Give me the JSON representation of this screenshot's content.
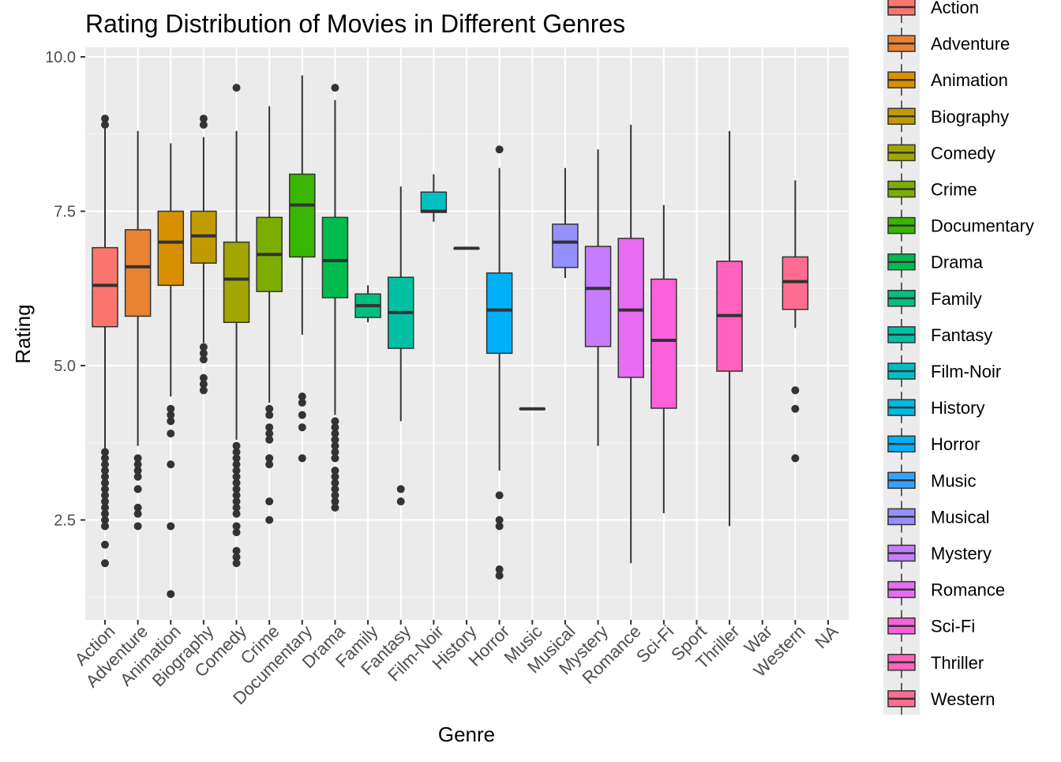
{
  "chart_data": {
    "type": "boxplot",
    "title": "Rating Distribution of Movies in Different Genres",
    "xlabel": "Genre",
    "ylabel": "Rating",
    "ylim": [
      0.88,
      10.15
    ],
    "yticks": [
      "2.5",
      "5.0",
      "7.5",
      "10.0"
    ],
    "grid": true,
    "legend_position": "right",
    "categories": [
      "Action",
      "Adventure",
      "Animation",
      "Biography",
      "Comedy",
      "Crime",
      "Documentary",
      "Drama",
      "Family",
      "Fantasy",
      "Film-Noir",
      "History",
      "Horror",
      "Music",
      "Musical",
      "Mystery",
      "Romance",
      "Sci-Fi",
      "Sport",
      "Thriller",
      "War",
      "Western",
      "NA"
    ],
    "boxes": [
      {
        "genre": "Action",
        "color": "#F8766D",
        "q1": 5.63,
        "median": 6.3,
        "q3": 6.91,
        "lower": 3.63,
        "upper": 8.84,
        "outliers": [
          9.0,
          8.9,
          3.6,
          3.5,
          3.4,
          3.3,
          3.2,
          3.1,
          3.0,
          2.9,
          2.8,
          2.7,
          2.6,
          2.5,
          2.4,
          2.1,
          1.8
        ]
      },
      {
        "genre": "Adventure",
        "color": "#EA8331",
        "q1": 5.8,
        "median": 6.6,
        "q3": 7.2,
        "lower": 3.7,
        "upper": 8.8,
        "outliers": [
          3.5,
          3.4,
          3.3,
          3.2,
          3.0,
          2.7,
          2.6,
          2.4
        ]
      },
      {
        "genre": "Animation",
        "color": "#D89000",
        "q1": 6.3,
        "median": 7.0,
        "q3": 7.5,
        "lower": 4.5,
        "upper": 8.6,
        "outliers": [
          4.3,
          4.2,
          4.1,
          3.9,
          3.4,
          2.4,
          1.3
        ]
      },
      {
        "genre": "Biography",
        "color": "#C09B00",
        "q1": 6.66,
        "median": 7.1,
        "q3": 7.5,
        "lower": 5.37,
        "upper": 8.7,
        "outliers": [
          9.0,
          8.9,
          5.3,
          5.2,
          5.1,
          4.8,
          4.7,
          4.6
        ]
      },
      {
        "genre": "Comedy",
        "color": "#A3A500",
        "q1": 5.7,
        "median": 6.4,
        "q3": 7.0,
        "lower": 3.8,
        "upper": 8.8,
        "outliers": [
          9.5,
          3.7,
          3.6,
          3.5,
          3.4,
          3.3,
          3.2,
          3.1,
          3.0,
          2.9,
          2.8,
          2.7,
          2.6,
          2.4,
          2.3,
          2.0,
          1.9,
          1.8
        ]
      },
      {
        "genre": "Crime",
        "color": "#7CAE00",
        "q1": 6.2,
        "median": 6.8,
        "q3": 7.4,
        "lower": 4.4,
        "upper": 9.2,
        "outliers": [
          4.3,
          4.2,
          4.0,
          3.9,
          3.8,
          3.5,
          3.4,
          2.8,
          2.5
        ]
      },
      {
        "genre": "Documentary",
        "color": "#39B600",
        "q1": 6.76,
        "median": 7.6,
        "q3": 8.1,
        "lower": 5.5,
        "upper": 9.7,
        "outliers": [
          4.5,
          4.4,
          4.2,
          4.0,
          3.5
        ]
      },
      {
        "genre": "Drama",
        "color": "#00BB4E",
        "q1": 6.1,
        "median": 6.7,
        "q3": 7.4,
        "lower": 4.2,
        "upper": 9.3,
        "outliers": [
          9.5,
          4.1,
          4.0,
          3.9,
          3.8,
          3.7,
          3.6,
          3.5,
          3.3,
          3.2,
          3.1,
          3.0,
          2.9,
          2.8,
          2.7
        ]
      },
      {
        "genre": "Family",
        "color": "#00BF7D",
        "q1": 5.78,
        "median": 5.97,
        "q3": 6.16,
        "lower": 5.7,
        "upper": 6.3,
        "outliers": []
      },
      {
        "genre": "Fantasy",
        "color": "#00C1A3",
        "q1": 5.28,
        "median": 5.86,
        "q3": 6.43,
        "lower": 4.1,
        "upper": 7.9,
        "outliers": [
          3.0,
          2.8
        ]
      },
      {
        "genre": "Film-Noir",
        "color": "#00BFC4",
        "q1": 7.48,
        "median": 7.5,
        "q3": 7.81,
        "lower": 7.33,
        "upper": 8.1,
        "outliers": []
      },
      {
        "genre": "History",
        "color": "#00BAE0",
        "q1": 6.9,
        "median": 6.9,
        "q3": 6.9,
        "lower": 6.9,
        "upper": 6.9,
        "outliers": []
      },
      {
        "genre": "Horror",
        "color": "#00B0F6",
        "q1": 5.2,
        "median": 5.9,
        "q3": 6.5,
        "lower": 3.3,
        "upper": 8.2,
        "outliers": [
          8.5,
          2.9,
          2.5,
          2.4,
          1.7,
          1.6
        ]
      },
      {
        "genre": "Music",
        "color": "#35A2FF",
        "q1": 4.3,
        "median": 4.3,
        "q3": 4.3,
        "lower": 4.3,
        "upper": 4.3,
        "outliers": []
      },
      {
        "genre": "Musical",
        "color": "#9590FF",
        "q1": 6.59,
        "median": 7.0,
        "q3": 7.29,
        "lower": 6.42,
        "upper": 8.2,
        "outliers": []
      },
      {
        "genre": "Mystery",
        "color": "#C77CFF",
        "q1": 5.31,
        "median": 6.25,
        "q3": 6.93,
        "lower": 3.7,
        "upper": 8.5,
        "outliers": []
      },
      {
        "genre": "Romance",
        "color": "#E76BF3",
        "q1": 4.81,
        "median": 5.9,
        "q3": 7.06,
        "lower": 1.8,
        "upper": 8.9,
        "outliers": []
      },
      {
        "genre": "Sci-Fi",
        "color": "#FA62DB",
        "q1": 4.31,
        "median": 5.41,
        "q3": 6.4,
        "lower": 2.61,
        "upper": 7.6,
        "outliers": []
      },
      {
        "genre": "Thriller",
        "color": "#FF62BC",
        "q1": 4.91,
        "median": 5.81,
        "q3": 6.69,
        "lower": 2.4,
        "upper": 8.8,
        "outliers": []
      },
      {
        "genre": "Western",
        "color": "#FF6C91",
        "q1": 5.91,
        "median": 6.36,
        "q3": 6.76,
        "lower": 5.61,
        "upper": 8.0,
        "outliers": [
          4.6,
          4.3,
          3.5
        ]
      }
    ],
    "legend": [
      "Action",
      "Adventure",
      "Animation",
      "Biography",
      "Comedy",
      "Crime",
      "Documentary",
      "Drama",
      "Family",
      "Fantasy",
      "Film-Noir",
      "History",
      "Horror",
      "Music",
      "Musical",
      "Mystery",
      "Romance",
      "Sci-Fi",
      "Thriller",
      "Western"
    ]
  }
}
